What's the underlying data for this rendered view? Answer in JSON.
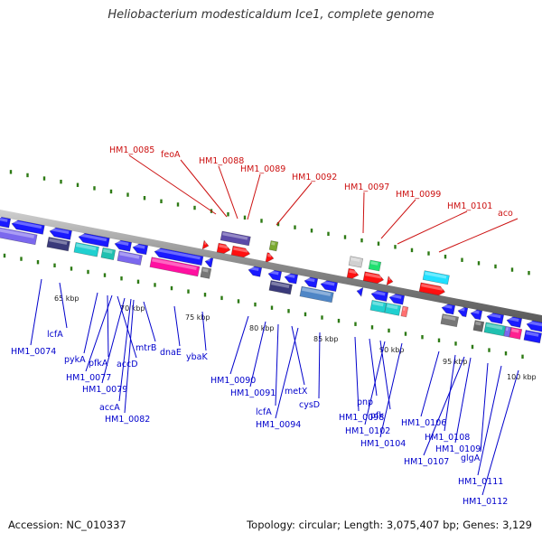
{
  "title": "Heliobacterium modesticaldum Ice1, complete genome",
  "footer": {
    "accession": "Accession: NC_010337",
    "stats": "Topology: circular; Length: 3,075,407 bp; Genes: 3,129"
  },
  "colors": {
    "forward_label": "#cc1111",
    "reverse_label": "#0000cc",
    "backbone": "#888888",
    "tick": "#2d7a14"
  },
  "scale": [
    {
      "text": "65 kbp"
    },
    {
      "text": "70 kbp"
    },
    {
      "text": "75 kbp"
    },
    {
      "text": "80 kbp"
    },
    {
      "text": "85 kbp"
    },
    {
      "text": "90 kbp"
    },
    {
      "text": "95 kbp"
    },
    {
      "text": "100 kbp"
    }
  ],
  "forward_labels": [
    {
      "text": "HM1_0085"
    },
    {
      "text": "feoA"
    },
    {
      "text": "HM1_0088"
    },
    {
      "text": "HM1_0089"
    },
    {
      "text": "HM1_0092"
    },
    {
      "text": "HM1_0097"
    },
    {
      "text": "HM1_0099"
    },
    {
      "text": "HM1_0101"
    },
    {
      "text": "aco"
    }
  ],
  "reverse_labels": [
    {
      "text": "HM1_0074"
    },
    {
      "text": "lcfA"
    },
    {
      "text": "pykA"
    },
    {
      "text": "pfkA"
    },
    {
      "text": "HM1_0077"
    },
    {
      "text": "accD"
    },
    {
      "text": "HM1_0079"
    },
    {
      "text": "accA"
    },
    {
      "text": "mtrB"
    },
    {
      "text": "HM1_0082"
    },
    {
      "text": "dnaE"
    },
    {
      "text": "ybaK"
    },
    {
      "text": "HM1_0090"
    },
    {
      "text": "HM1_0091"
    },
    {
      "text": "lcfA"
    },
    {
      "text": "metX"
    },
    {
      "text": "HM1_0094"
    },
    {
      "text": "cysD"
    },
    {
      "text": "HM1_0098"
    },
    {
      "text": "pnp"
    },
    {
      "text": "pfk"
    },
    {
      "text": "HM1_0102"
    },
    {
      "text": "HM1_0104"
    },
    {
      "text": "HM1_0106"
    },
    {
      "text": "HM1_0108"
    },
    {
      "text": "HM1_0109"
    },
    {
      "text": "HM1_0107"
    },
    {
      "text": "glgA"
    },
    {
      "text": "HM1_0111"
    },
    {
      "text": "HM1_0112"
    }
  ]
}
